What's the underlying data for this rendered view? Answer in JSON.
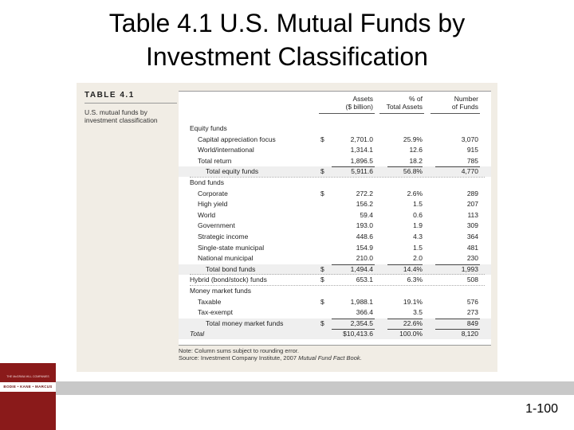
{
  "slide": {
    "title_line1": "Table 4.1 U.S. Mutual Funds by",
    "title_line2": "Investment Classification",
    "page_number": "1-100"
  },
  "logo": {
    "top_text": "THE McGRAW-HILL COMPANIES",
    "band_text": "BODIE • KANE • MARCUS"
  },
  "table": {
    "label": "TABLE 4.1",
    "description_line1": "U.S. mutual funds by",
    "description_line2": "investment classification",
    "headers": {
      "assets_line1": "Assets",
      "assets_line2": "($ billion)",
      "pct_line1": "% of",
      "pct_line2": "Total Assets",
      "num_line1": "Number",
      "num_line2": "of Funds"
    },
    "rows": [
      {
        "type": "sec",
        "label": "Equity funds"
      },
      {
        "type": "item",
        "label": "Capital appreciation focus",
        "cur": "$",
        "assets": "2,701.0",
        "pct": "25.9%",
        "num": "3,070"
      },
      {
        "type": "item",
        "label": "World/international",
        "cur": "",
        "assets": "1,314.1",
        "pct": "12.6",
        "num": "915"
      },
      {
        "type": "item",
        "label": "Total return",
        "cur": "",
        "assets": "1,896.5",
        "pct": "18.2",
        "num": "785"
      },
      {
        "type": "sub",
        "label": "Total equity funds",
        "cur": "$",
        "assets": "5,911.6",
        "pct": "56.8%",
        "num": "4,770"
      },
      {
        "type": "sec",
        "label": "Bond funds"
      },
      {
        "type": "item",
        "label": "Corporate",
        "cur": "$",
        "assets": "272.2",
        "pct": "2.6%",
        "num": "289"
      },
      {
        "type": "item",
        "label": "High yield",
        "cur": "",
        "assets": "156.2",
        "pct": "1.5",
        "num": "207"
      },
      {
        "type": "item",
        "label": "World",
        "cur": "",
        "assets": "59.4",
        "pct": "0.6",
        "num": "113"
      },
      {
        "type": "item",
        "label": "Government",
        "cur": "",
        "assets": "193.0",
        "pct": "1.9",
        "num": "309"
      },
      {
        "type": "item",
        "label": "Strategic income",
        "cur": "",
        "assets": "448.6",
        "pct": "4.3",
        "num": "364"
      },
      {
        "type": "item",
        "label": "Single-state municipal",
        "cur": "",
        "assets": "154.9",
        "pct": "1.5",
        "num": "481"
      },
      {
        "type": "item",
        "label": "National municipal",
        "cur": "",
        "assets": "210.0",
        "pct": "2.0",
        "num": "230"
      },
      {
        "type": "sub",
        "label": "Total bond funds",
        "cur": "$",
        "assets": "1,494.4",
        "pct": "14.4%",
        "num": "1,993"
      },
      {
        "type": "sec",
        "label": "Hybrid (bond/stock) funds",
        "cur": "$",
        "assets": "653.1",
        "pct": "6.3%",
        "num": "508"
      },
      {
        "type": "sec",
        "label": "Money market funds"
      },
      {
        "type": "item",
        "label": "Taxable",
        "cur": "$",
        "assets": "1,988.1",
        "pct": "19.1%",
        "num": "576"
      },
      {
        "type": "item",
        "label": "Tax-exempt",
        "cur": "",
        "assets": "366.4",
        "pct": "3.5",
        "num": "273"
      },
      {
        "type": "sub",
        "label": "Total money market funds",
        "cur": "$",
        "assets": "2,354.5",
        "pct": "22.6%",
        "num": "849"
      },
      {
        "type": "total",
        "label": "Total",
        "cur": "",
        "assets": "$10,413.6",
        "pct": "100.0%",
        "num": "8,120"
      }
    ],
    "note_line1": "Note: Column sums subject to rounding error.",
    "source_prefix": "Source: Investment Company Institute, 2007 ",
    "source_title": "Mutual Fund Fact Book",
    "source_suffix": "."
  }
}
